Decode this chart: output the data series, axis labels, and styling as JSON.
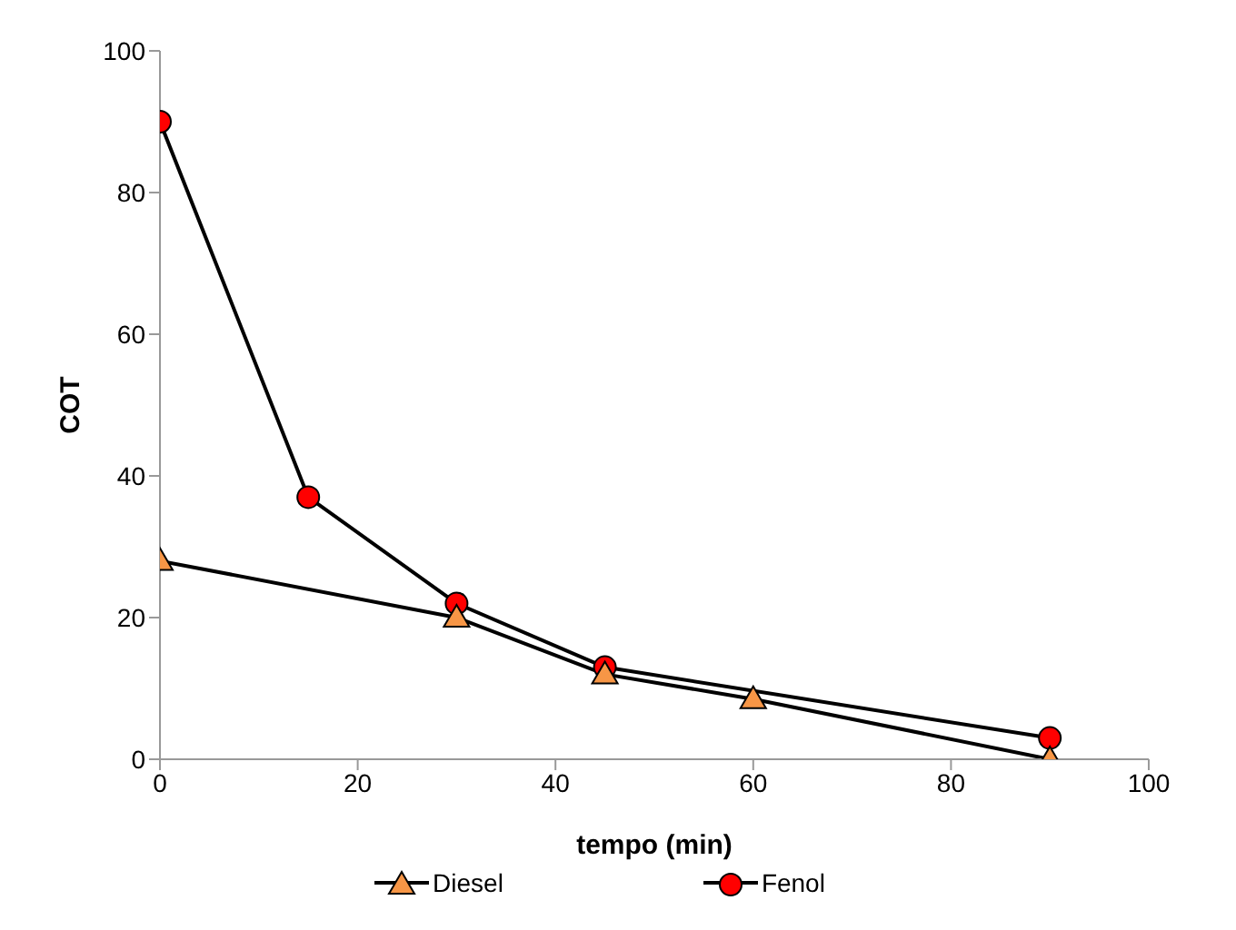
{
  "chart_data": {
    "type": "line",
    "xlabel": "tempo (min)",
    "ylabel": "COT",
    "xlim": [
      0,
      100
    ],
    "xticks": [
      0,
      20,
      40,
      60,
      80,
      100
    ],
    "ylim": [
      0,
      100
    ],
    "yticks": [
      0,
      20,
      40,
      60,
      80,
      100
    ],
    "grid": false,
    "legend": "bottom",
    "line_style": "solid",
    "series": [
      {
        "name": "Diesel",
        "color": "#f79646",
        "marker": "triangle",
        "x": [
          0,
          30,
          45,
          60,
          90
        ],
        "values": [
          28,
          20,
          12,
          8.5,
          0
        ]
      },
      {
        "name": "Fenol",
        "color": "#ff0000",
        "marker": "circle",
        "x": [
          0,
          15,
          30,
          45,
          90
        ],
        "values": [
          90,
          37,
          22,
          13,
          3
        ]
      }
    ]
  }
}
